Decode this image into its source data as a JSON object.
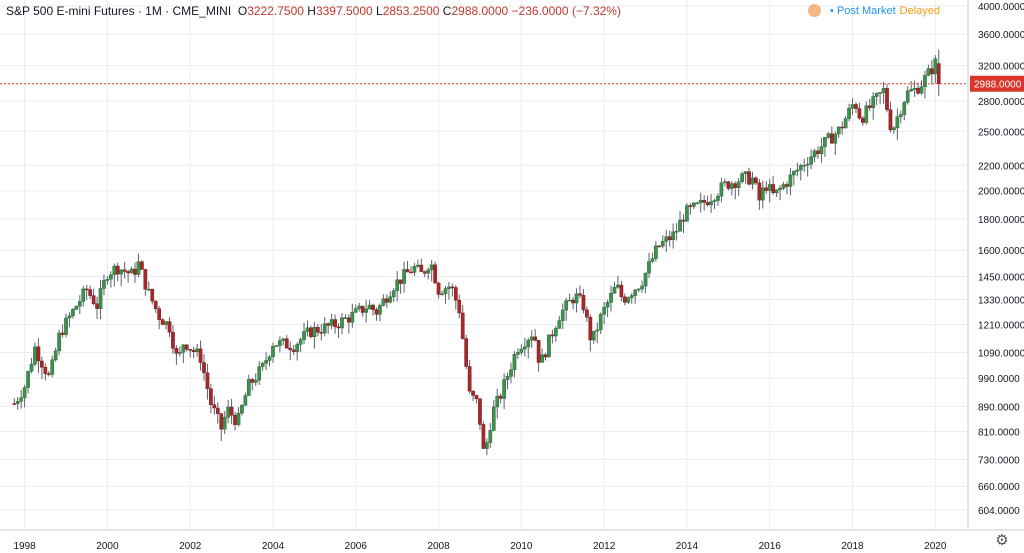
{
  "legend": {
    "symbol": "S&P 500 E-mini Futures · 1M · CME_MINI",
    "open_label": "O",
    "open": "3222.7500",
    "high_label": "H",
    "high": "3397.5000",
    "low_label": "L",
    "low": "2853.2500",
    "close_label": "C",
    "close": "2988.0000",
    "change": "−236.0000 (−7.32%)"
  },
  "status": {
    "post_market": "Post Market",
    "delayed": "Delayed"
  },
  "last_price_label": "2988.0000",
  "colors": {
    "up": "#26a69a",
    "down": "#d9372b",
    "upBody": "#3f8f4e",
    "downBody": "#a5292a",
    "wick": "#5d606b",
    "grid": "#e9ecf2",
    "lastLine": "#e53935"
  },
  "chart_data": {
    "type": "candlestick",
    "title": "S&P 500 E-mini Futures · 1M · CME_MINI",
    "y_scale": "log",
    "y_ticks": [
      604,
      660,
      730,
      810,
      890,
      990,
      1090,
      1210,
      1330,
      1450,
      1600,
      1800,
      2000,
      2200,
      2500,
      2800,
      3200,
      3600,
      4000
    ],
    "y_tick_labels": [
      "604.0000",
      "660.0000",
      "730.0000",
      "810.0000",
      "890.0000",
      "990.0000",
      "1090.0000",
      "1210.0000",
      "1330.0000",
      "1450.0000",
      "1600.0000",
      "1800.0000",
      "2000.0000",
      "2200.0000",
      "2500.0000",
      "2800.0000",
      "3200.0000",
      "3600.0000",
      "4000.0000"
    ],
    "x_ticks": [
      1998,
      2000,
      2002,
      2004,
      2006,
      2008,
      2010,
      2012,
      2014,
      2016,
      2018,
      2020
    ],
    "x_tick_labels": [
      "1998",
      "2000",
      "2002",
      "2004",
      "2006",
      "2008",
      "2010",
      "2012",
      "2014",
      "2016",
      "2018",
      "2020"
    ],
    "ylim": [
      560,
      4000
    ],
    "last_price": 2988,
    "monthly_close_path": [
      [
        1997.75,
        900
      ],
      [
        1998.0,
        960
      ],
      [
        1998.25,
        1110
      ],
      [
        1998.6,
        990
      ],
      [
        1998.85,
        1170
      ],
      [
        1999.25,
        1300
      ],
      [
        1999.5,
        1380
      ],
      [
        1999.75,
        1300
      ],
      [
        2000.0,
        1470
      ],
      [
        2000.25,
        1500
      ],
      [
        2000.6,
        1460
      ],
      [
        2000.75,
        1520
      ],
      [
        2001.0,
        1360
      ],
      [
        2001.25,
        1250
      ],
      [
        2001.5,
        1200
      ],
      [
        2001.7,
        1050
      ],
      [
        2001.85,
        1140
      ],
      [
        2002.0,
        1110
      ],
      [
        2002.25,
        1070
      ],
      [
        2002.5,
        900
      ],
      [
        2002.75,
        820
      ],
      [
        2002.9,
        880
      ],
      [
        2003.15,
        840
      ],
      [
        2003.4,
        960
      ],
      [
        2003.75,
        1030
      ],
      [
        2004.0,
        1130
      ],
      [
        2004.5,
        1120
      ],
      [
        2004.9,
        1180
      ],
      [
        2005.5,
        1210
      ],
      [
        2005.9,
        1250
      ],
      [
        2006.3,
        1300
      ],
      [
        2006.5,
        1270
      ],
      [
        2006.9,
        1400
      ],
      [
        2007.4,
        1500
      ],
      [
        2007.6,
        1460
      ],
      [
        2007.8,
        1540
      ],
      [
        2008.0,
        1380
      ],
      [
        2008.3,
        1400
      ],
      [
        2008.5,
        1280
      ],
      [
        2008.75,
        930
      ],
      [
        2008.95,
        900
      ],
      [
        2009.1,
        735
      ],
      [
        2009.3,
        870
      ],
      [
        2009.5,
        930
      ],
      [
        2009.9,
        1110
      ],
      [
        2010.3,
        1180
      ],
      [
        2010.45,
        1040
      ],
      [
        2010.9,
        1250
      ],
      [
        2011.3,
        1350
      ],
      [
        2011.5,
        1300
      ],
      [
        2011.7,
        1130
      ],
      [
        2011.95,
        1260
      ],
      [
        2012.3,
        1400
      ],
      [
        2012.45,
        1330
      ],
      [
        2012.9,
        1420
      ],
      [
        2013.3,
        1620
      ],
      [
        2013.7,
        1700
      ],
      [
        2013.95,
        1840
      ],
      [
        2014.3,
        1890
      ],
      [
        2014.6,
        1960
      ],
      [
        2014.95,
        2050
      ],
      [
        2015.4,
        2100
      ],
      [
        2015.6,
        2090
      ],
      [
        2015.75,
        1930
      ],
      [
        2015.9,
        2050
      ],
      [
        2016.1,
        1960
      ],
      [
        2016.5,
        2100
      ],
      [
        2016.9,
        2250
      ],
      [
        2017.3,
        2380
      ],
      [
        2017.7,
        2520
      ],
      [
        2018.05,
        2800
      ],
      [
        2018.2,
        2620
      ],
      [
        2018.5,
        2780
      ],
      [
        2018.75,
        2910
      ],
      [
        2018.95,
        2500
      ],
      [
        2019.3,
        2880
      ],
      [
        2019.5,
        2920
      ],
      [
        2019.65,
        2980
      ],
      [
        2019.9,
        3150
      ],
      [
        2020.0,
        3230
      ],
      [
        2020.12,
        2988
      ]
    ]
  }
}
